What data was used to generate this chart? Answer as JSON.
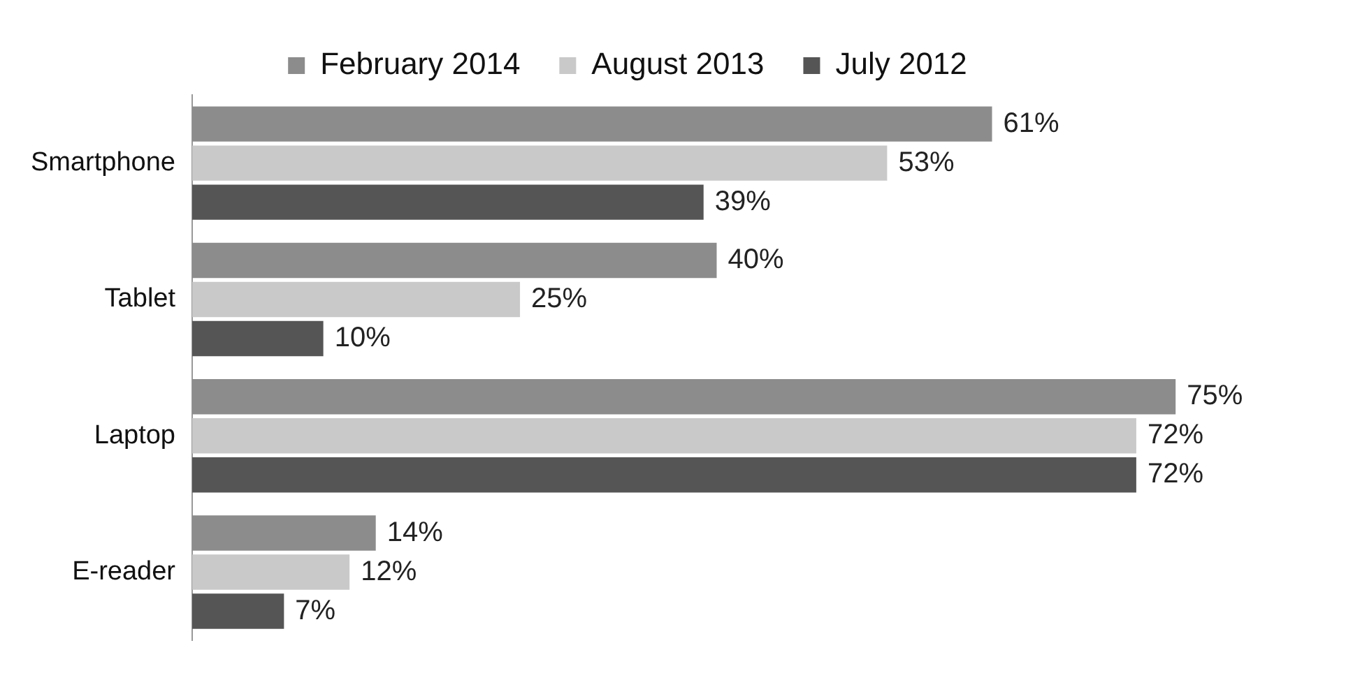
{
  "chart_data": {
    "type": "bar",
    "orientation": "horizontal",
    "categories": [
      "Smartphone",
      "Tablet",
      "Laptop",
      "E-reader"
    ],
    "series": [
      {
        "name": "February 2014",
        "color": "#8c8c8c",
        "values": [
          61,
          40,
          75,
          14
        ],
        "value_labels": [
          "61%",
          "40%",
          "75%",
          "14%"
        ]
      },
      {
        "name": "August 2013",
        "color": "#c9c9c9",
        "values": [
          53,
          25,
          72,
          12
        ],
        "value_labels": [
          "53%",
          "25%",
          "72%",
          "12%"
        ]
      },
      {
        "name": "July 2012",
        "color": "#555555",
        "values": [
          39,
          10,
          72,
          7
        ],
        "value_labels": [
          "39%",
          "10%",
          "72%",
          "7%"
        ]
      }
    ],
    "tick_labels": "y",
    "legend": "top"
  }
}
